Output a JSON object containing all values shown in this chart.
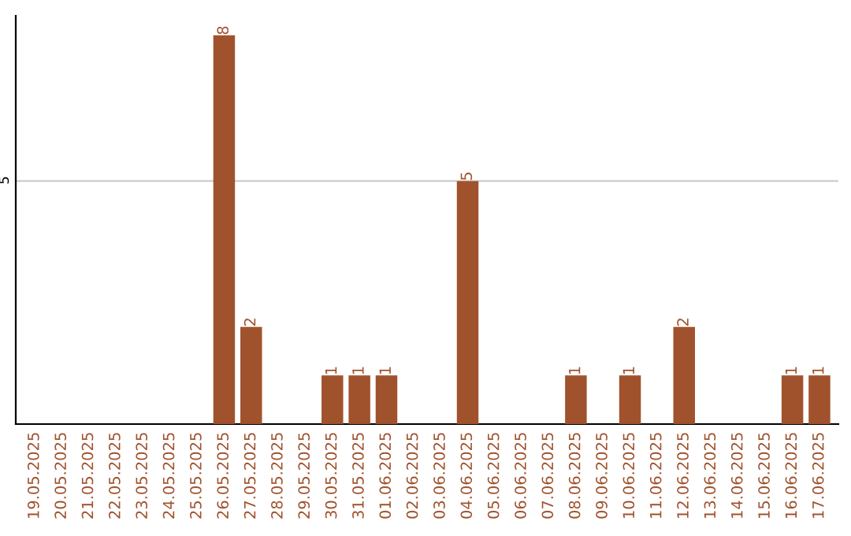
{
  "chart_data": {
    "type": "bar",
    "categories": [
      "19.05.2025",
      "20.05.2025",
      "21.05.2025",
      "22.05.2025",
      "23.05.2025",
      "24.05.2025",
      "25.05.2025",
      "26.05.2025",
      "27.05.2025",
      "28.05.2025",
      "29.05.2025",
      "30.05.2025",
      "31.05.2025",
      "01.06.2025",
      "02.06.2025",
      "03.06.2025",
      "04.06.2025",
      "05.06.2025",
      "06.06.2025",
      "07.06.2025",
      "08.06.2025",
      "09.06.2025",
      "10.06.2025",
      "11.06.2025",
      "12.06.2025",
      "13.06.2025",
      "14.06.2025",
      "15.06.2025",
      "16.06.2025",
      "17.06.2025"
    ],
    "values": [
      0,
      0,
      0,
      0,
      0,
      0,
      0,
      8,
      2,
      0,
      0,
      1,
      1,
      1,
      0,
      0,
      5,
      0,
      0,
      0,
      1,
      0,
      1,
      0,
      2,
      0,
      0,
      0,
      1,
      1
    ],
    "color": "#a0522d",
    "value_labels": [
      null,
      null,
      null,
      null,
      null,
      null,
      null,
      "8",
      "2",
      null,
      null,
      "1",
      "1",
      "1",
      null,
      null,
      "5",
      null,
      null,
      null,
      "1",
      null,
      "1",
      null,
      "2",
      null,
      null,
      null,
      "1",
      "1"
    ],
    "ylim": [
      0,
      8.4
    ],
    "yticks": [
      5
    ],
    "grid": "y",
    "legend": false
  }
}
